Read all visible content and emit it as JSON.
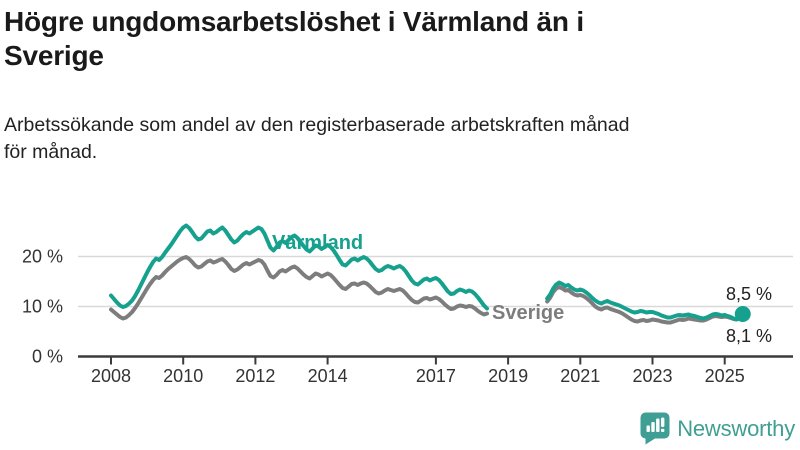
{
  "page": {
    "title": "Högre ungdomsarbetslöshet i Värmland än i Sverige",
    "subtitle": "Arbetssökande som andel av den registerbaserade arbetskraften månad för månad."
  },
  "branding": {
    "logo_text": "Newsworthy",
    "logo_color": "#3f9f94"
  },
  "chart_data": {
    "type": "line",
    "title": "Högre ungdomsarbetslöshet i Värmland än i Sverige",
    "subtitle": "Arbetssökande som andel av den registerbaserade arbetskraften månad för månad.",
    "unit": "%",
    "grid": "horizontal-only",
    "legend_position": "inline-labels",
    "xlim": [
      2007.1,
      2026.9
    ],
    "ylim": [
      0,
      28
    ],
    "x_ticks": [
      2008,
      2010,
      2012,
      2014,
      2017,
      2019,
      2021,
      2023,
      2025
    ],
    "y_ticks": [
      {
        "value": 0,
        "label": "0 %"
      },
      {
        "value": 10,
        "label": "10 %"
      },
      {
        "value": 20,
        "label": "20 %"
      }
    ],
    "data_gap": {
      "from": "2018-07",
      "to": "2020-01"
    },
    "series": [
      {
        "name": "Sverige",
        "color": "#7d7d7d",
        "end_label": "8,1 %",
        "end_value": 8.1,
        "end_dot": true,
        "segments": [
          {
            "start": "2008-01",
            "values": [
              9.4,
              8.9,
              8.4,
              7.9,
              7.6,
              7.8,
              8.3,
              8.9,
              9.7,
              10.6,
              11.6,
              12.6,
              13.6,
              14.5,
              15.3,
              15.9,
              15.7,
              16.2,
              16.9,
              17.5,
              18.0,
              18.5,
              19.0,
              19.4,
              19.7,
              19.9,
              19.5,
              18.9,
              18.2,
              17.8,
              18.0,
              18.5,
              19.0,
              19.2,
              18.8,
              19.0,
              19.3,
              19.5,
              19.0,
              18.3,
              17.5,
              17.1,
              17.4,
              17.9,
              18.4,
              18.7,
              18.4,
              18.7,
              19.0,
              19.3,
              19.1,
              18.4,
              17.2,
              16.1,
              15.8,
              16.3,
              17.0,
              17.3,
              17.0,
              17.4,
              17.8,
              18.0,
              17.6,
              17.0,
              16.4,
              15.9,
              15.6,
              16.1,
              16.6,
              16.4,
              16.0,
              16.3,
              16.6,
              16.3,
              15.7,
              15.0,
              14.3,
              13.7,
              13.5,
              14.0,
              14.5,
              14.6,
              14.3,
              14.6,
              14.8,
              14.6,
              14.1,
              13.5,
              12.9,
              12.6,
              12.8,
              13.2,
              13.5,
              13.3,
              13.1,
              13.3,
              13.5,
              13.2,
              12.6,
              11.9,
              11.3,
              10.9,
              10.8,
              11.2,
              11.6,
              11.7,
              11.4,
              11.6,
              11.8,
              11.5,
              11.0,
              10.4,
              9.9,
              9.5,
              9.6,
              10.0,
              10.2,
              10.1,
              9.9,
              10.1,
              10.0,
              9.6,
              9.1,
              8.7,
              8.4,
              8.6
            ]
          },
          {
            "start": "2020-02",
            "values": [
              11.0,
              11.8,
              12.9,
              13.6,
              13.9,
              13.6,
              13.2,
              13.3,
              12.8,
              12.4,
              12.2,
              12.3,
              12.1,
              11.7,
              11.2,
              10.6,
              10.0,
              9.6,
              9.4,
              9.7,
              9.8,
              9.5,
              9.3,
              9.1,
              8.9,
              8.6,
              8.2,
              7.8,
              7.4,
              7.1,
              7.0,
              7.2,
              7.3,
              7.1,
              7.2,
              7.4,
              7.3,
              7.2,
              7.0,
              6.9,
              6.8,
              6.8,
              7.0,
              7.2,
              7.4,
              7.3,
              7.4,
              7.6,
              7.5,
              7.4,
              7.3,
              7.2,
              7.2,
              7.4,
              7.7,
              8.0,
              8.1,
              8.0,
              7.9,
              8.0,
              7.9,
              7.7,
              7.5,
              7.4,
              7.7,
              8.1
            ]
          }
        ]
      },
      {
        "name": "Värmland",
        "color": "#16a18f",
        "end_label": "8,5 %",
        "end_value": 8.5,
        "end_dot": true,
        "segments": [
          {
            "start": "2008-01",
            "values": [
              12.2,
              11.5,
              10.8,
              10.2,
              9.9,
              10.1,
              10.6,
              11.2,
              12.1,
              13.2,
              14.4,
              15.6,
              16.8,
              17.9,
              18.9,
              19.6,
              19.3,
              19.9,
              20.8,
              21.6,
              22.4,
              23.3,
              24.2,
              25.1,
              25.8,
              26.2,
              25.7,
              24.9,
              24.0,
              23.4,
              23.6,
              24.3,
              25.0,
              25.2,
              24.6,
              24.9,
              25.4,
              25.8,
              25.2,
              24.3,
              23.4,
              22.8,
              23.2,
              23.9,
              24.5,
              24.9,
              24.6,
              25.0,
              25.4,
              25.8,
              25.5,
              24.6,
              23.2,
              21.8,
              21.2,
              21.9,
              22.8,
              23.1,
              22.7,
              23.3,
              23.9,
              24.2,
              23.7,
              22.9,
              22.1,
              21.4,
              21.0,
              21.6,
              22.2,
              22.0,
              21.5,
              21.9,
              22.3,
              21.9,
              21.2,
              20.3,
              19.3,
              18.4,
              18.2,
              18.8,
              19.4,
              19.6,
              19.2,
              19.6,
              19.9,
              19.6,
              19.0,
              18.2,
              17.5,
              17.1,
              17.3,
              17.8,
              18.1,
              17.9,
              17.6,
              17.9,
              18.1,
              17.7,
              17.0,
              16.1,
              15.2,
              14.6,
              14.4,
              14.9,
              15.4,
              15.6,
              15.2,
              15.5,
              15.7,
              15.3,
              14.6,
              13.8,
              13.0,
              12.5,
              12.6,
              13.1,
              13.4,
              13.2,
              12.9,
              13.2,
              13.0,
              12.5,
              11.8,
              11.0,
              10.2,
              9.6
            ]
          },
          {
            "start": "2020-02",
            "values": [
              11.6,
              12.4,
              13.6,
              14.4,
              14.8,
              14.5,
              14.1,
              14.3,
              13.8,
              13.4,
              13.2,
              13.4,
              13.2,
              12.8,
              12.3,
              11.7,
              11.2,
              10.8,
              10.6,
              10.9,
              11.1,
              10.8,
              10.6,
              10.4,
              10.2,
              9.9,
              9.6,
              9.3,
              9.0,
              8.8,
              8.9,
              9.1,
              9.0,
              8.8,
              8.9,
              8.9,
              8.7,
              8.5,
              8.2,
              8.0,
              7.8,
              7.8,
              8.0,
              8.2,
              8.3,
              8.2,
              8.3,
              8.4,
              8.2,
              8.1,
              7.9,
              7.7,
              7.6,
              7.8,
              8.1,
              8.4,
              8.5,
              8.4,
              8.2,
              8.3,
              8.1,
              7.9,
              7.6,
              7.4,
              7.9,
              8.5
            ]
          }
        ]
      }
    ]
  }
}
